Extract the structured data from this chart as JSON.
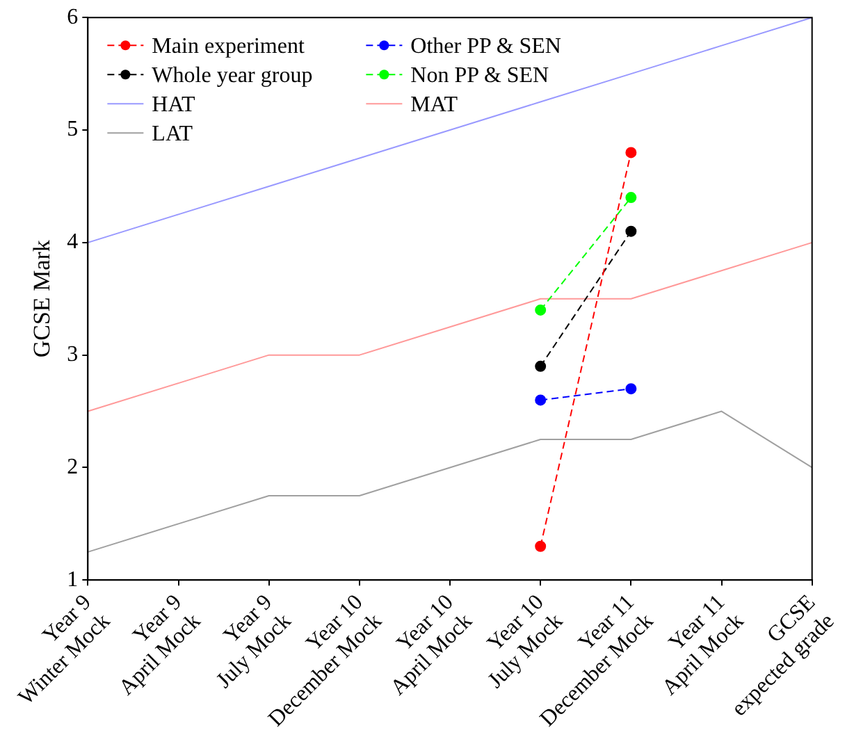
{
  "chart_data": {
    "type": "line",
    "ylabel": "GCSE Mark",
    "categories": [
      "Year 9 Winter Mock",
      "Year 9 April Mock",
      "Year 9 July Mock",
      "Year 10 December Mock",
      "Year 10 April Mock",
      "Year 10 July Mock",
      "Year 11 December Mock",
      "Year 11 April Mock",
      "GCSE expected grade"
    ],
    "ylim": [
      1,
      6
    ],
    "yticks": [
      1,
      2,
      3,
      4,
      5,
      6
    ],
    "legend": "top left",
    "series": [
      {
        "name": "Main experiment",
        "color": "#ff0000",
        "marker": "circle",
        "line_style": "dashed",
        "values": [
          null,
          null,
          null,
          null,
          null,
          1.3,
          4.8,
          null,
          null
        ]
      },
      {
        "name": "Other PP & SEN",
        "color": "#0000ff",
        "marker": "circle",
        "line_style": "dashed",
        "values": [
          null,
          null,
          null,
          null,
          null,
          2.6,
          2.7,
          null,
          null
        ]
      },
      {
        "name": "Whole year group",
        "color": "#000000",
        "marker": "circle",
        "line_style": "dashed",
        "values": [
          null,
          null,
          null,
          null,
          null,
          2.9,
          4.1,
          null,
          null
        ]
      },
      {
        "name": "Non PP & SEN",
        "color": "#00ff00",
        "marker": "circle",
        "line_style": "dashed",
        "values": [
          null,
          null,
          null,
          null,
          null,
          3.4,
          4.4,
          null,
          null
        ]
      },
      {
        "name": "HAT",
        "color": "#9999ff",
        "marker": "none",
        "line_style": "solid",
        "values": [
          4,
          4.25,
          4.5,
          4.75,
          5,
          5.25,
          5.5,
          5.75,
          6
        ]
      },
      {
        "name": "MAT",
        "color": "#ff9999",
        "marker": "none",
        "line_style": "solid",
        "values": [
          2.5,
          2.75,
          3,
          3,
          3.25,
          3.5,
          3.5,
          3.75,
          4
        ]
      },
      {
        "name": "LAT",
        "color": "#a0a0a0",
        "marker": "none",
        "line_style": "solid",
        "values": [
          1.25,
          1.5,
          1.75,
          1.75,
          2,
          2.25,
          2.25,
          2.5,
          2
        ]
      }
    ]
  }
}
